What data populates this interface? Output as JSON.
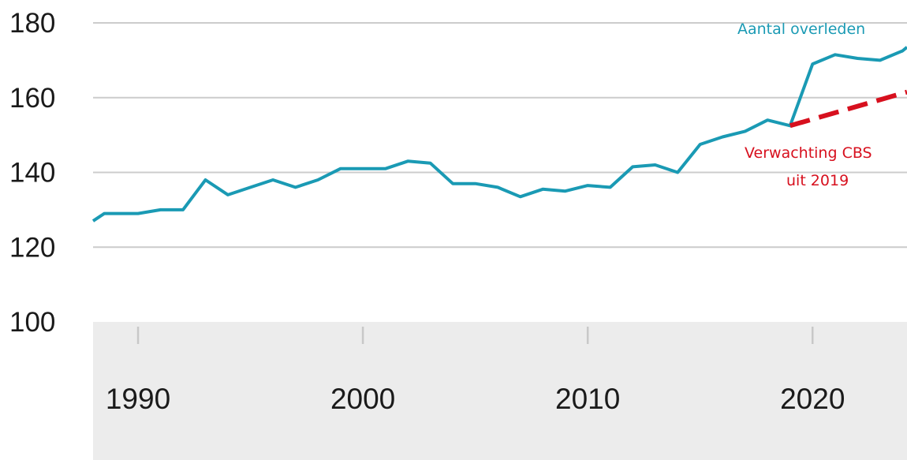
{
  "chart_data": {
    "type": "line",
    "title": "",
    "xlabel": "",
    "ylabel": "",
    "ylim": [
      100,
      180
    ],
    "xlim": [
      1988,
      2024.2
    ],
    "y_ticks": [
      "100",
      "120",
      "140",
      "160",
      "180"
    ],
    "x_ticks": [
      "1990",
      "2000",
      "2010",
      "2020"
    ],
    "grid": "horizontal",
    "colors": {
      "observed": "#1a9ab4",
      "forecast": "#d7101e",
      "gridline": "#cccccc",
      "axis_band": "#ececec"
    },
    "series": [
      {
        "name": "Aantal overleden",
        "style": "solid",
        "x": [
          1988,
          1988.5,
          1989,
          1990,
          1991,
          1992,
          1993,
          1994,
          1995,
          1996,
          1997,
          1998,
          1999,
          2000,
          2001,
          2002,
          2003,
          2004,
          2005,
          2006,
          2007,
          2008,
          2009,
          2010,
          2011,
          2012,
          2013,
          2014,
          2015,
          2016,
          2017,
          2018,
          2019,
          2020,
          2021,
          2022,
          2023,
          2024,
          2024.2
        ],
        "values": [
          127,
          129,
          129,
          129,
          130,
          130,
          138,
          134,
          136,
          138,
          136,
          138,
          141,
          141,
          141,
          143,
          142.5,
          137,
          137,
          136,
          133.5,
          135.5,
          135,
          136.5,
          136,
          141.5,
          142,
          140,
          147.5,
          149.5,
          151,
          154,
          152.5,
          169,
          171.5,
          170.5,
          170,
          172.5,
          173.5
        ]
      },
      {
        "name": "Verwachting CBS uit 2019",
        "style": "dashed",
        "x": [
          2019,
          2024.2
        ],
        "values": [
          152.5,
          161.5
        ]
      }
    ],
    "annotations": {
      "observed_label": "Aantal overleden",
      "forecast_label_line1": "Verwachting CBS",
      "forecast_label_line2": "uit 2019"
    }
  }
}
